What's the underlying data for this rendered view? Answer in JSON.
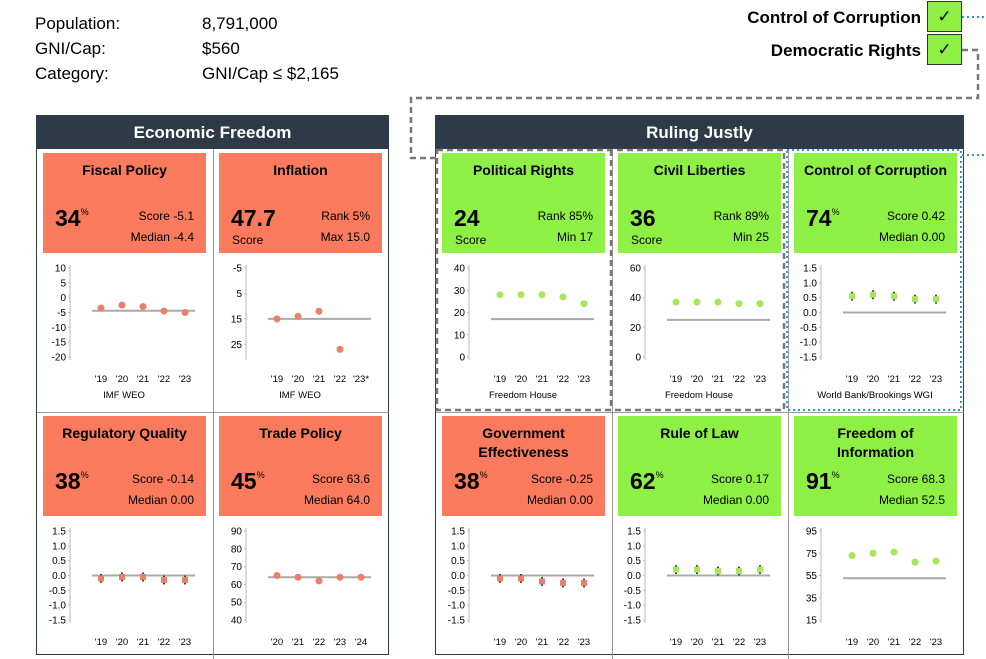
{
  "info": [
    {
      "label": "Population:",
      "value": "8,791,000"
    },
    {
      "label": "GNI/Cap:",
      "value": "$560"
    },
    {
      "label": "Category:",
      "value": "GNI/Cap ≤ $2,165"
    }
  ],
  "legend": [
    {
      "label": "Control of Corruption",
      "mark": "✓"
    },
    {
      "label": "Democratic Rights",
      "mark": "✓"
    }
  ],
  "sections": [
    {
      "title": "Economic Freedom",
      "panels": [
        {
          "title": "Fiscal Policy",
          "box_color": "#f97a5c",
          "point_color": "#e9806a",
          "headline": {
            "value": "34",
            "unit": "%"
          },
          "stats": [
            {
              "label": "Score",
              "value": "-5.1"
            },
            {
              "label": "Median",
              "value": "-4.4"
            }
          ],
          "chart": {
            "ylim": [
              -20,
              10
            ],
            "yticks": [
              10,
              5,
              0,
              -5,
              -10,
              -15,
              -20
            ],
            "x": [
              "'19",
              "'20",
              "'21",
              "'22",
              "'23"
            ],
            "values": [
              -3.5,
              -2.5,
              -3,
              -4.5,
              -5
            ],
            "reference": -4.4,
            "source": "IMF WEO"
          }
        },
        {
          "title": "Inflation",
          "box_color": "#f97a5c",
          "point_color": "#e9806a",
          "headline": {
            "value": "47.7",
            "label": "Score"
          },
          "stats": [
            {
              "label": "Rank",
              "value": "5%"
            },
            {
              "label": "Max",
              "value": "15.0"
            }
          ],
          "chart": {
            "ylim": [
              30,
              -5
            ],
            "yticks": [
              -5,
              5,
              15,
              25
            ],
            "x": [
              "'19",
              "'20",
              "'21",
              "'22",
              "'23*"
            ],
            "values": [
              15,
              14,
              12,
              27,
              null
            ],
            "reference": 15,
            "source": "IMF WEO"
          }
        },
        {
          "title": "Regulatory Quality",
          "box_color": "#f97a5c",
          "point_color": "#e9806a",
          "headline": {
            "value": "38",
            "unit": "%"
          },
          "stats": [
            {
              "label": "Score",
              "value": "-0.14"
            },
            {
              "label": "Median",
              "value": "0.00"
            }
          ],
          "chart": {
            "ylim": [
              -1.5,
              1.5
            ],
            "yticks": [
              1.5,
              {
                "value": 1,
                "label": "1.0"
              },
              0.5,
              {
                "value": 0,
                "label": "0.0"
              },
              {
                "value": -0.5,
                "label": "-0.5"
              },
              {
                "value": -1,
                "label": "-1.0"
              },
              -1.5
            ],
            "x": [
              "'19",
              "'20",
              "'21",
              "'22",
              "'23"
            ],
            "values": [
              -0.1,
              -0.05,
              -0.05,
              -0.15,
              -0.15
            ],
            "errors": [
              0.15,
              0.15,
              0.15,
              0.15,
              0.15
            ],
            "reference": 0
          }
        },
        {
          "title": "Trade Policy",
          "box_color": "#f97a5c",
          "point_color": "#e9806a",
          "headline": {
            "value": "45",
            "unit": "%"
          },
          "stats": [
            {
              "label": "Score",
              "value": "63.6"
            },
            {
              "label": "Median",
              "value": "64.0"
            }
          ],
          "chart": {
            "ylim": [
              40,
              90
            ],
            "yticks": [
              90,
              80,
              70,
              60,
              50,
              40
            ],
            "x": [
              "'20",
              "'21",
              "'22",
              "'23",
              "'24"
            ],
            "values": [
              65,
              64,
              62,
              64,
              64
            ],
            "reference": 64
          }
        }
      ]
    },
    {
      "title": "Ruling Justly",
      "panels": [
        {
          "title": "Political Rights",
          "box_color": "#8eef45",
          "point_color": "#a6e85a",
          "headline": {
            "value": "24",
            "label": "Score"
          },
          "stats": [
            {
              "label": "Rank",
              "value": "85%"
            },
            {
              "label": "Min",
              "value": "17"
            }
          ],
          "chart": {
            "ylim": [
              0,
              40
            ],
            "yticks": [
              40,
              30,
              20,
              10,
              0
            ],
            "x": [
              "'19",
              "'20",
              "'21",
              "'22",
              "'23"
            ],
            "values": [
              28,
              28,
              28,
              27,
              24
            ],
            "reference": 17,
            "source": "Freedom House"
          }
        },
        {
          "title": "Civil Liberties",
          "box_color": "#8eef45",
          "point_color": "#a6e85a",
          "headline": {
            "value": "36",
            "label": "Score"
          },
          "stats": [
            {
              "label": "Rank",
              "value": "89%"
            },
            {
              "label": "Min",
              "value": "25"
            }
          ],
          "chart": {
            "ylim": [
              0,
              60
            ],
            "yticks": [
              60,
              40,
              20,
              0
            ],
            "x": [
              "'19",
              "'20",
              "'21",
              "'22",
              "'23"
            ],
            "values": [
              37,
              37,
              37,
              36,
              36
            ],
            "reference": 25,
            "source": "Freedom House"
          }
        },
        {
          "title": "Control of Corruption",
          "box_color": "#8eef45",
          "point_color": "#a6e85a",
          "headline": {
            "value": "74",
            "unit": "%"
          },
          "stats": [
            {
              "label": "Score",
              "value": "0.42"
            },
            {
              "label": "Median",
              "value": "0.00"
            }
          ],
          "chart": {
            "ylim": [
              -1.5,
              1.5
            ],
            "yticks": [
              1.5,
              {
                "value": 1,
                "label": "1.0"
              },
              0.5,
              {
                "value": 0,
                "label": "0.0"
              },
              {
                "value": -0.5,
                "label": "-0.5"
              },
              {
                "value": -1,
                "label": "-1.0"
              },
              -1.5
            ],
            "x": [
              "'19",
              "'20",
              "'21",
              "'22",
              "'23"
            ],
            "values": [
              0.55,
              0.6,
              0.55,
              0.45,
              0.45
            ],
            "errors": [
              0.15,
              0.15,
              0.15,
              0.15,
              0.15
            ],
            "reference": 0,
            "source": "World Bank/Brookings WGI"
          }
        },
        {
          "title": "Government Effectiveness",
          "box_color": "#f97a5c",
          "point_color": "#e9806a",
          "headline": {
            "value": "38",
            "unit": "%"
          },
          "stats": [
            {
              "label": "Score",
              "value": "-0.25"
            },
            {
              "label": "Median",
              "value": "0.00"
            }
          ],
          "chart": {
            "ylim": [
              -1.5,
              1.5
            ],
            "yticks": [
              1.5,
              {
                "value": 1,
                "label": "1.0"
              },
              0.5,
              {
                "value": 0,
                "label": "0.0"
              },
              {
                "value": -0.5,
                "label": "-0.5"
              },
              {
                "value": -1,
                "label": "-1.0"
              },
              -1.5
            ],
            "x": [
              "'19",
              "'20",
              "'21",
              "'22",
              "'23"
            ],
            "values": [
              -0.1,
              -0.1,
              -0.2,
              -0.25,
              -0.25
            ],
            "errors": [
              0.15,
              0.15,
              0.15,
              0.15,
              0.15
            ],
            "reference": 0
          }
        },
        {
          "title": "Rule of Law",
          "box_color": "#8eef45",
          "point_color": "#a6e85a",
          "headline": {
            "value": "62",
            "unit": "%"
          },
          "stats": [
            {
              "label": "Score",
              "value": "0.17"
            },
            {
              "label": "Median",
              "value": "0.00"
            }
          ],
          "chart": {
            "ylim": [
              -1.5,
              1.5
            ],
            "yticks": [
              1.5,
              {
                "value": 1,
                "label": "1.0"
              },
              0.5,
              {
                "value": 0,
                "label": "0.0"
              },
              {
                "value": -0.5,
                "label": "-0.5"
              },
              {
                "value": -1,
                "label": "-1.0"
              },
              -1.5
            ],
            "x": [
              "'19",
              "'20",
              "'21",
              "'22",
              "'23"
            ],
            "values": [
              0.2,
              0.2,
              0.15,
              0.15,
              0.2
            ],
            "errors": [
              0.15,
              0.15,
              0.15,
              0.15,
              0.15
            ],
            "reference": 0
          }
        },
        {
          "title": "Freedom of Information",
          "box_color": "#8eef45",
          "point_color": "#a6e85a",
          "headline": {
            "value": "91",
            "unit": "%"
          },
          "stats": [
            {
              "label": "Score",
              "value": "68.3"
            },
            {
              "label": "Median",
              "value": "52.5"
            }
          ],
          "chart": {
            "ylim": [
              15,
              95
            ],
            "yticks": [
              95,
              75,
              55,
              35,
              15
            ],
            "x": [
              "'19",
              "'20",
              "'21",
              "'22",
              "'23"
            ],
            "values": [
              73,
              75,
              76,
              67,
              68
            ],
            "reference": 52.5
          }
        }
      ]
    }
  ]
}
